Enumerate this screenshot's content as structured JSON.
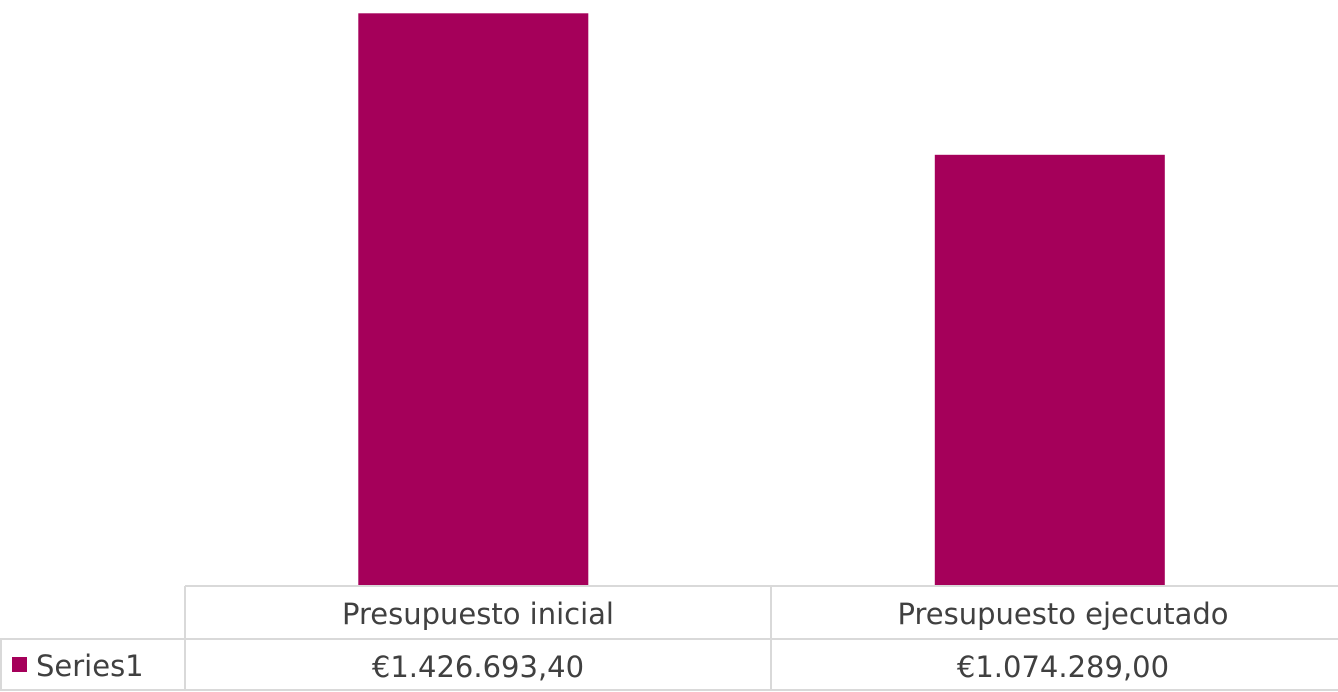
{
  "chart_data": {
    "type": "bar",
    "categories": [
      "Presupuesto inicial",
      "Presupuesto ejecutado"
    ],
    "series": [
      {
        "name": "Series1",
        "values": [
          1426693.4,
          1074289.0
        ],
        "formatted_values": [
          "€1.426.693,40",
          "€1.074.289,00"
        ],
        "color": "#A5005A"
      }
    ],
    "ylim": [
      0,
      1430000
    ],
    "data_table": true,
    "legend_in_table": true,
    "gridlines": false,
    "title": "",
    "xlabel": "",
    "ylabel": ""
  }
}
